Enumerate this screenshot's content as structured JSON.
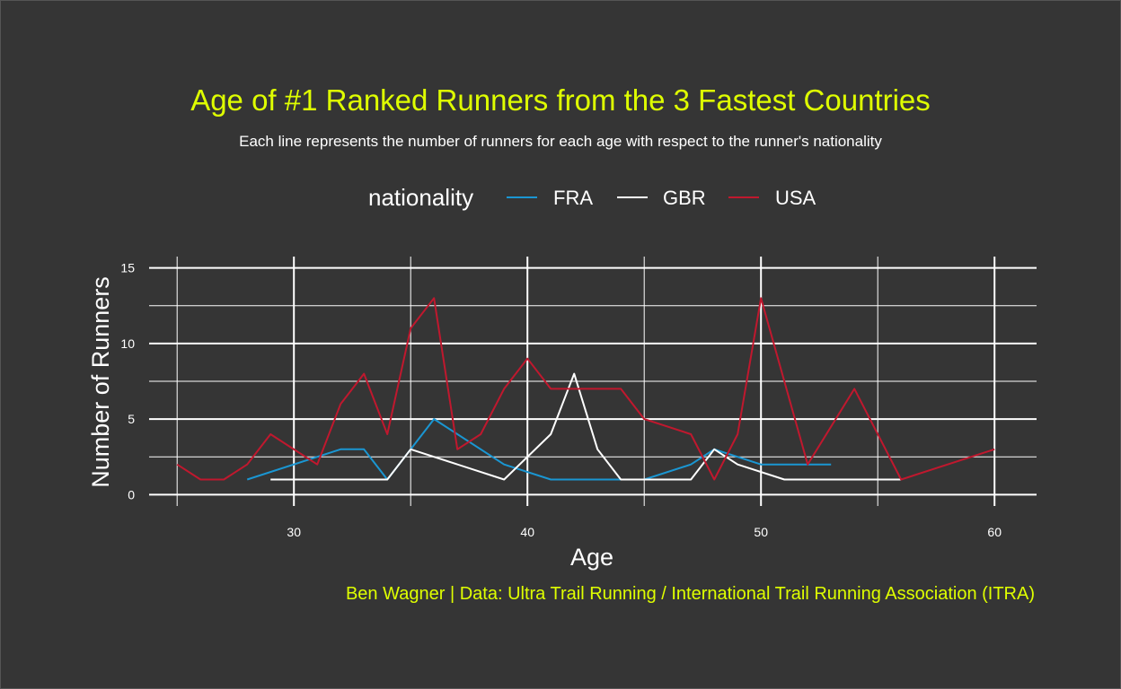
{
  "chart_data": {
    "type": "line",
    "title": "Age of #1 Ranked Runners from the 3 Fastest Countries",
    "subtitle": "Each line represents the number of runners for each age with respect to the runner's nationality",
    "xlabel": "Age",
    "ylabel": "Number of Runners",
    "caption": "Ben Wagner | Data: Ultra Trail Running / International Trail Running Association (ITRA)",
    "legend_title": "nationality",
    "legend_position": "top",
    "grid": true,
    "xlim": [
      23.8,
      61.8
    ],
    "ylim": [
      -0.75,
      15.75
    ],
    "x_ticks": [
      30,
      40,
      50,
      60
    ],
    "y_ticks": [
      0,
      5,
      10,
      15
    ],
    "colors": {
      "background": "#353535",
      "title": "#dfff00",
      "caption": "#dfff00",
      "text": "#ffffff",
      "grid": "#ffffff"
    },
    "series": [
      {
        "name": "FRA",
        "color": "#1a96d2",
        "x": [
          28,
          32,
          33,
          34,
          36,
          39,
          41,
          44,
          45,
          47,
          48,
          50,
          53
        ],
        "y": [
          1,
          3,
          3,
          1,
          5,
          2,
          1,
          1,
          1,
          2,
          3,
          2,
          2
        ]
      },
      {
        "name": "GBR",
        "color": "#ffffff",
        "x": [
          29,
          34,
          35,
          39,
          41,
          42,
          43,
          44,
          47,
          48,
          49,
          51,
          56
        ],
        "y": [
          1,
          1,
          3,
          1,
          4,
          8,
          3,
          1,
          1,
          3,
          2,
          1,
          1
        ]
      },
      {
        "name": "USA",
        "color": "#c0182e",
        "x": [
          25,
          26,
          27,
          28,
          29,
          31,
          32,
          33,
          34,
          35,
          36,
          37,
          38,
          39,
          40,
          41,
          42,
          43,
          44,
          45,
          47,
          48,
          49,
          50,
          52,
          54,
          56,
          60
        ],
        "y": [
          2,
          1,
          1,
          2,
          4,
          2,
          6,
          8,
          4,
          11,
          13,
          3,
          4,
          7,
          9,
          7,
          7,
          7,
          7,
          5,
          4,
          1,
          4,
          13,
          2,
          7,
          1,
          3
        ]
      }
    ]
  }
}
